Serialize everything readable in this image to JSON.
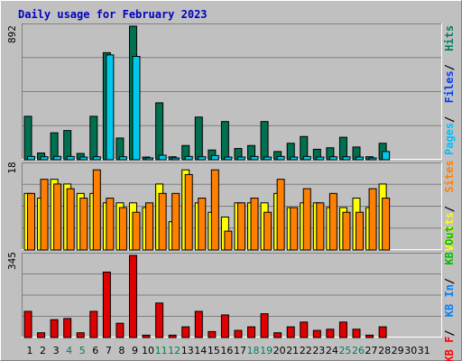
{
  "chart_data": {
    "type": "bar",
    "title": "Daily usage for February 2023",
    "categories": [
      "1",
      "2",
      "3",
      "4",
      "5",
      "6",
      "7",
      "8",
      "9",
      "10",
      "11",
      "12",
      "13",
      "14",
      "15",
      "16",
      "17",
      "18",
      "19",
      "20",
      "21",
      "22",
      "23",
      "24",
      "25",
      "26",
      "27",
      "28",
      "29",
      "30",
      "31"
    ],
    "weekend_days": [
      "4",
      "5",
      "11",
      "12",
      "18",
      "19",
      "25",
      "26"
    ],
    "panels": [
      {
        "name": "hits-files-pages",
        "axis_max_label": "892",
        "ylim": [
          0,
          892
        ],
        "legend": [
          {
            "label": "Pages",
            "color": "#00c0ff"
          },
          {
            "label": "Files",
            "color": "#0040ff"
          },
          {
            "label": "Hits",
            "color": "#008060"
          }
        ],
        "series": [
          {
            "name": "Hits",
            "color": "#007050",
            "values": [
              290,
              45,
              180,
              195,
              42,
              290,
              715,
              145,
              892,
              18,
              380,
              20,
              95,
              285,
              65,
              255,
              75,
              95,
              255,
              55,
              110,
              155,
              70,
              80,
              150,
              85,
              20,
              110,
              0,
              0,
              0
            ]
          },
          {
            "name": "Files",
            "color": "#00c8e8",
            "values": [
              22,
              20,
              22,
              22,
              18,
              20,
              700,
              20,
              690,
              12,
              30,
              12,
              22,
              20,
              28,
              18,
              18,
              22,
              18,
              22,
              18,
              22,
              18,
              20,
              20,
              18,
              12,
              55,
              0,
              0,
              0
            ]
          }
        ]
      },
      {
        "name": "visits-sites",
        "axis_max_label": "18",
        "ylim": [
          0,
          18
        ],
        "legend": [
          {
            "label": "Visits",
            "color": "#ffff00"
          },
          {
            "label": "Sites",
            "color": "#ff8000"
          }
        ],
        "series": [
          {
            "name": "Visits",
            "color": "#ffff00",
            "values": [
              12,
              11,
              15,
              14,
              12,
              12,
              10,
              10,
              10,
              9,
              14,
              6,
              17,
              10,
              8,
              7,
              10,
              10,
              10,
              12,
              9,
              10,
              10,
              9,
              9,
              11,
              9,
              14,
              0,
              0,
              0
            ]
          },
          {
            "name": "Sites",
            "color": "#ff8000",
            "values": [
              12,
              15,
              14,
              13,
              11,
              17,
              11,
              9,
              8,
              10,
              12,
              12,
              16,
              11,
              17,
              4,
              10,
              11,
              8,
              15,
              9,
              13,
              10,
              12,
              8,
              8,
              13,
              11,
              0,
              0,
              0
            ]
          }
        ]
      },
      {
        "name": "kb-in-out",
        "axis_max_label": "345",
        "ylim": [
          0,
          345
        ],
        "legend": [
          {
            "label": "KB F",
            "color": "#ff0000"
          },
          {
            "label": "KB In",
            "color": "#0080ff"
          },
          {
            "label": "KB Out",
            "color": "#00c000"
          }
        ],
        "series": [
          {
            "name": "KB F",
            "color": "#e00000",
            "values": [
              110,
              20,
              75,
              80,
              20,
              110,
              275,
              60,
              345,
              10,
              145,
              10,
              45,
              110,
              25,
              95,
              30,
              45,
              100,
              20,
              45,
              65,
              30,
              35,
              65,
              35,
              10,
              45,
              0,
              0,
              0
            ]
          }
        ]
      }
    ]
  }
}
